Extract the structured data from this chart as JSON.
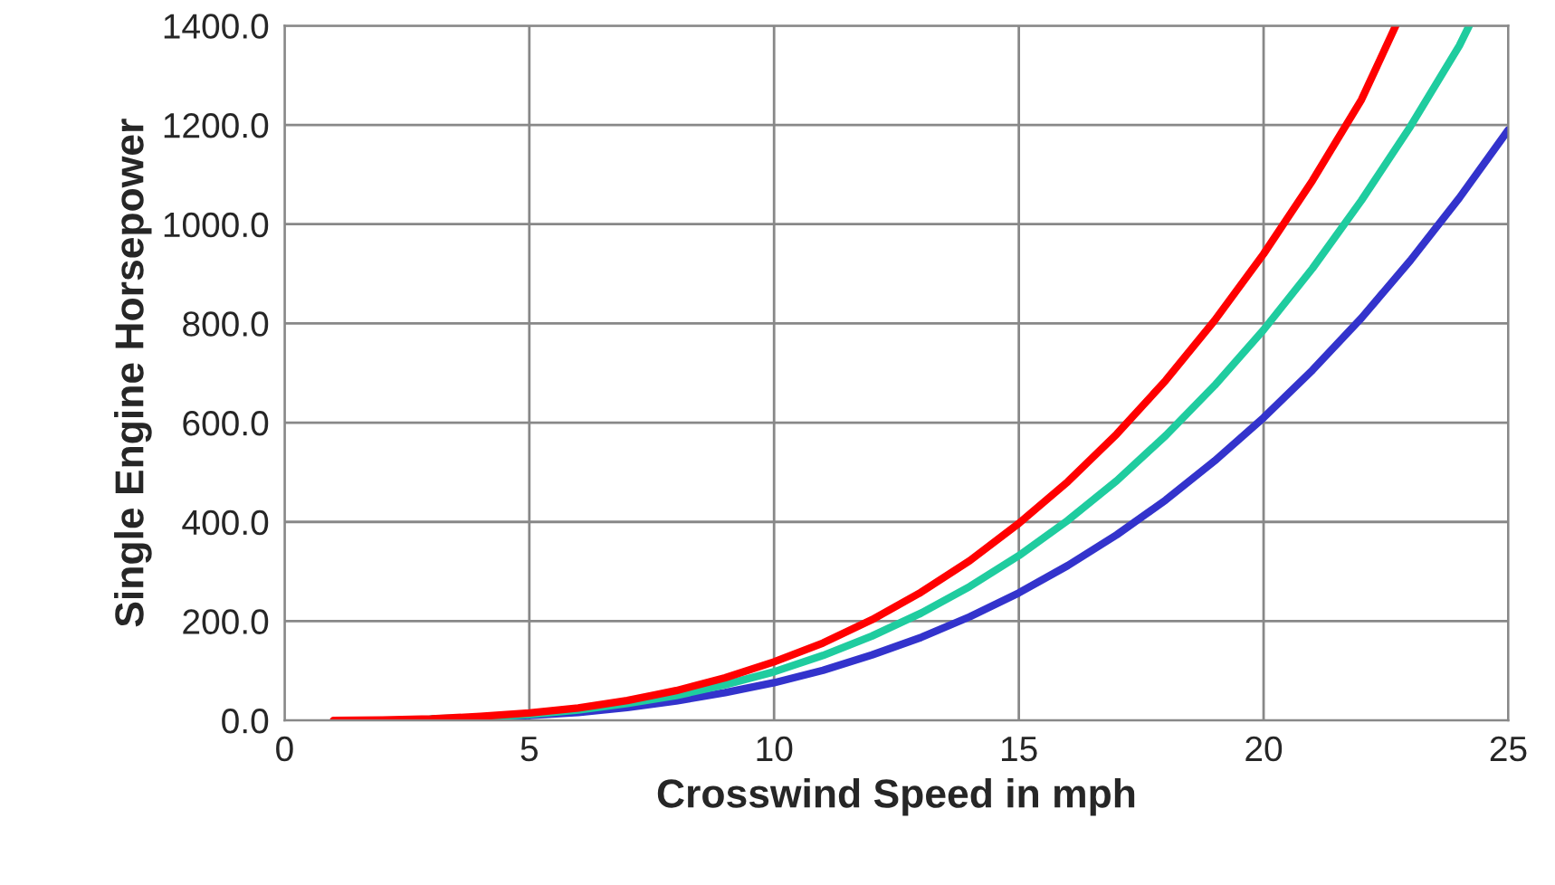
{
  "chart_data": {
    "type": "line",
    "xlabel": "Crosswind Speed in mph",
    "ylabel": "Single Engine Horsepower",
    "xlim": [
      0,
      25
    ],
    "xticks": [
      0,
      5,
      10,
      15,
      20,
      25
    ],
    "ylim": [
      0,
      1400
    ],
    "yticks": [
      {
        "value": 0,
        "label": "0.0"
      },
      {
        "value": 200,
        "label": "200.0"
      },
      {
        "value": 400,
        "label": "400.0"
      },
      {
        "value": 600,
        "label": "600.0"
      },
      {
        "value": 800,
        "label": "800.0"
      },
      {
        "value": 1000,
        "label": "1000.0"
      },
      {
        "value": 1200,
        "label": "1200.0"
      },
      {
        "value": 1400,
        "label": "1400.0"
      }
    ],
    "grid": true,
    "legend": false,
    "marker": "none",
    "line_style": "solid",
    "series": [
      {
        "color": "#3333cc",
        "x": [
          4,
          5,
          6,
          7,
          8,
          9,
          10,
          11,
          12,
          13,
          14,
          15,
          16,
          17,
          18,
          19,
          20,
          21,
          22,
          23,
          24,
          25
        ],
        "values": [
          5,
          10,
          16,
          26,
          39,
          56,
          76,
          101,
          132,
          167,
          209,
          257,
          312,
          374,
          444,
          523,
          610,
          706,
          811,
          927,
          1053,
          1190
        ]
      },
      {
        "color": "#1fcc9f",
        "x": [
          3,
          4,
          5,
          6,
          7,
          8,
          9,
          10,
          11,
          12,
          13,
          14,
          15,
          16,
          17,
          18,
          19,
          20,
          21,
          22,
          23,
          24,
          24.2
        ],
        "values": [
          3,
          6,
          12,
          21,
          34,
          50,
          72,
          98,
          131,
          170,
          216,
          270,
          332,
          403,
          483,
          574,
          675,
          787,
          911,
          1048,
          1197,
          1360,
          1400
        ]
      },
      {
        "color": "#ff0000",
        "x": [
          1,
          2,
          3,
          4,
          5,
          6,
          7,
          8,
          9,
          10,
          11,
          12,
          13,
          14,
          15,
          16,
          17,
          18,
          19,
          20,
          21,
          22,
          22.7
        ],
        "values": [
          0,
          1,
          3,
          8,
          15,
          25,
          40,
          60,
          86,
          118,
          156,
          203,
          258,
          322,
          397,
          481,
          577,
          685,
          806,
          940,
          1088,
          1251,
          1400
        ]
      }
    ]
  }
}
